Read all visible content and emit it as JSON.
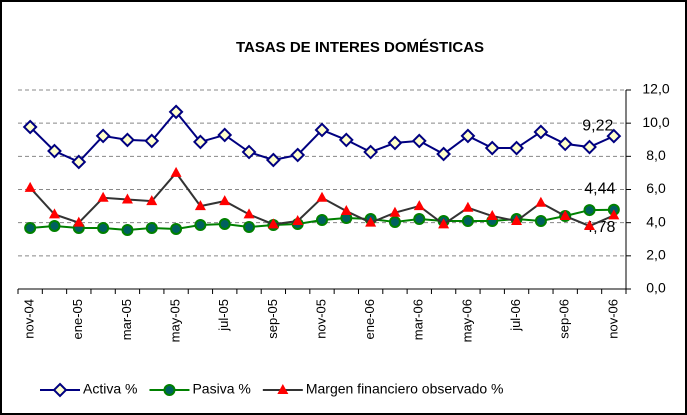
{
  "chart_data": {
    "type": "line",
    "title": "TASAS DE INTERES DOMÉSTICAS",
    "categories": [
      "nov-04",
      null,
      "ene-05",
      null,
      "mar-05",
      null,
      "may-05",
      null,
      "jul-05",
      null,
      "sep-05",
      null,
      "nov-05",
      null,
      "ene-06",
      null,
      "mar-06",
      null,
      "may-06",
      null,
      "jul-06",
      null,
      "sep-06",
      null,
      "nov-06"
    ],
    "series": [
      {
        "name": "Activa %",
        "color": "#000080",
        "marker": "diamond",
        "marker_fill": "#ffffcc",
        "values": [
          9.77,
          8.32,
          7.66,
          9.23,
          8.99,
          8.93,
          10.68,
          8.87,
          9.29,
          8.26,
          7.78,
          8.08,
          9.59,
          8.99,
          8.26,
          8.81,
          8.93,
          8.14,
          9.23,
          8.5,
          8.5,
          9.47,
          8.75,
          8.56,
          9.22
        ],
        "value_labels": [
          null,
          null,
          null,
          null,
          null,
          null,
          null,
          null,
          null,
          null,
          null,
          null,
          null,
          null,
          null,
          null,
          null,
          null,
          null,
          null,
          null,
          null,
          null,
          null,
          "9,22"
        ]
      },
      {
        "name": "Pasiva %",
        "color": "#008000",
        "marker": "circle",
        "marker_fill": "#006060",
        "values": [
          3.68,
          3.8,
          3.68,
          3.68,
          3.56,
          3.68,
          3.62,
          3.86,
          3.92,
          3.74,
          3.86,
          3.92,
          4.16,
          4.28,
          4.22,
          4.04,
          4.22,
          4.1,
          4.1,
          4.1,
          4.22,
          4.1,
          4.4,
          4.76,
          4.78
        ],
        "value_labels": [
          null,
          null,
          null,
          null,
          null,
          null,
          null,
          null,
          null,
          null,
          null,
          null,
          null,
          null,
          null,
          null,
          null,
          null,
          null,
          null,
          null,
          null,
          null,
          null,
          "4,78"
        ]
      },
      {
        "name": "Margen financiero observado %",
        "color": "#333333",
        "marker": "triangle",
        "marker_fill": "#ff0000",
        "values": [
          6.1,
          4.5,
          4.0,
          5.5,
          5.4,
          5.3,
          7.0,
          5.0,
          5.3,
          4.5,
          3.9,
          4.1,
          5.5,
          4.7,
          4.0,
          4.6,
          5.0,
          3.9,
          4.9,
          4.4,
          4.1,
          5.2,
          4.4,
          3.8,
          4.44
        ],
        "value_labels": [
          null,
          null,
          null,
          null,
          null,
          null,
          null,
          null,
          null,
          null,
          null,
          null,
          null,
          null,
          null,
          null,
          null,
          null,
          null,
          null,
          null,
          null,
          null,
          null,
          "4,44"
        ]
      }
    ],
    "ylim": [
      0,
      12
    ],
    "yticks": [
      {
        "value": 0,
        "label": "0,0"
      },
      {
        "value": 2,
        "label": "2,0"
      },
      {
        "value": 4,
        "label": "4,0"
      },
      {
        "value": 6,
        "label": "6,0"
      },
      {
        "value": 8,
        "label": "8,0"
      },
      {
        "value": 10,
        "label": "10,0"
      },
      {
        "value": 12,
        "label": "12,0"
      }
    ],
    "y_axis_side": "right",
    "grid": true,
    "legend": "bottom"
  }
}
